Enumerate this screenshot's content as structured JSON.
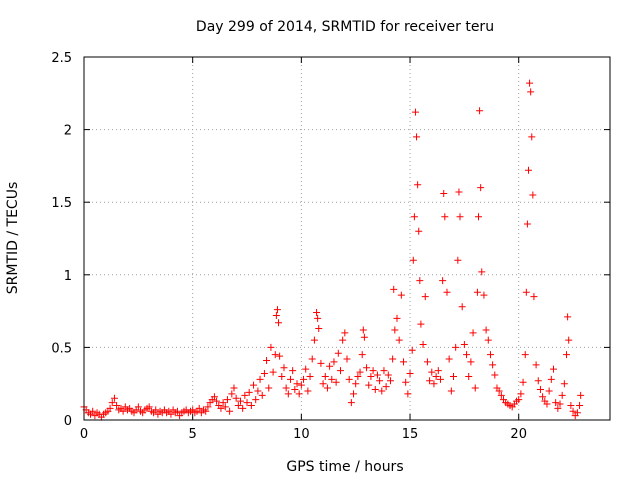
{
  "chart_data": {
    "type": "scatter",
    "title": "Day 299 of 2014, SRMTID for receiver teru",
    "xlabel": "GPS time / hours",
    "ylabel": "SRMTID / TECUs",
    "xlim": [
      0,
      24.2
    ],
    "ylim": [
      0,
      2.5
    ],
    "xticks": [
      0,
      5,
      10,
      15,
      20
    ],
    "xtick_labels": [
      "0",
      "5",
      "10",
      "15",
      "20"
    ],
    "yticks": [
      0,
      0.5,
      1,
      1.5,
      2,
      2.5
    ],
    "ytick_labels": [
      "0",
      "0.5",
      "1",
      "1.5",
      "2",
      "2.5"
    ],
    "grid": true,
    "marker": "+",
    "color": "#ff0000",
    "series": [
      {
        "name": "SRMTID",
        "points": [
          [
            0.0,
            0.09
          ],
          [
            0.1,
            0.07
          ],
          [
            0.2,
            0.05
          ],
          [
            0.3,
            0.04
          ],
          [
            0.4,
            0.06
          ],
          [
            0.5,
            0.03
          ],
          [
            0.6,
            0.05
          ],
          [
            0.7,
            0.04
          ],
          [
            0.8,
            0.02
          ],
          [
            0.9,
            0.04
          ],
          [
            1.0,
            0.05
          ],
          [
            1.1,
            0.06
          ],
          [
            1.2,
            0.08
          ],
          [
            1.3,
            0.12
          ],
          [
            1.4,
            0.15
          ],
          [
            1.5,
            0.1
          ],
          [
            1.6,
            0.07
          ],
          [
            1.7,
            0.08
          ],
          [
            1.8,
            0.06
          ],
          [
            1.9,
            0.09
          ],
          [
            2.0,
            0.07
          ],
          [
            2.1,
            0.08
          ],
          [
            2.2,
            0.06
          ],
          [
            2.3,
            0.05
          ],
          [
            2.4,
            0.07
          ],
          [
            2.5,
            0.09
          ],
          [
            2.6,
            0.06
          ],
          [
            2.7,
            0.05
          ],
          [
            2.8,
            0.07
          ],
          [
            2.9,
            0.08
          ],
          [
            3.0,
            0.09
          ],
          [
            3.1,
            0.06
          ],
          [
            3.2,
            0.05
          ],
          [
            3.3,
            0.07
          ],
          [
            3.4,
            0.04
          ],
          [
            3.5,
            0.06
          ],
          [
            3.6,
            0.05
          ],
          [
            3.7,
            0.07
          ],
          [
            3.8,
            0.05
          ],
          [
            3.9,
            0.06
          ],
          [
            4.0,
            0.04
          ],
          [
            4.1,
            0.07
          ],
          [
            4.2,
            0.05
          ],
          [
            4.3,
            0.06
          ],
          [
            4.4,
            0.03
          ],
          [
            4.5,
            0.05
          ],
          [
            4.6,
            0.06
          ],
          [
            4.7,
            0.07
          ],
          [
            4.8,
            0.05
          ],
          [
            4.9,
            0.06
          ],
          [
            5.0,
            0.07
          ],
          [
            5.1,
            0.05
          ],
          [
            5.2,
            0.06
          ],
          [
            5.3,
            0.08
          ],
          [
            5.4,
            0.05
          ],
          [
            5.5,
            0.07
          ],
          [
            5.6,
            0.06
          ],
          [
            5.7,
            0.09
          ],
          [
            5.8,
            0.12
          ],
          [
            5.9,
            0.14
          ],
          [
            6.0,
            0.16
          ],
          [
            6.1,
            0.13
          ],
          [
            6.2,
            0.1
          ],
          [
            6.3,
            0.08
          ],
          [
            6.4,
            0.12
          ],
          [
            6.5,
            0.09
          ],
          [
            6.6,
            0.14
          ],
          [
            6.7,
            0.06
          ],
          [
            6.8,
            0.18
          ],
          [
            6.9,
            0.22
          ],
          [
            7.0,
            0.15
          ],
          [
            7.1,
            0.1
          ],
          [
            7.2,
            0.13
          ],
          [
            7.3,
            0.08
          ],
          [
            7.4,
            0.17
          ],
          [
            7.5,
            0.12
          ],
          [
            7.6,
            0.19
          ],
          [
            7.7,
            0.1
          ],
          [
            7.8,
            0.24
          ],
          [
            7.9,
            0.14
          ],
          [
            8.0,
            0.2
          ],
          [
            8.1,
            0.28
          ],
          [
            8.2,
            0.17
          ],
          [
            8.3,
            0.32
          ],
          [
            8.4,
            0.41
          ],
          [
            8.5,
            0.22
          ],
          [
            8.6,
            0.5
          ],
          [
            8.7,
            0.33
          ],
          [
            8.8,
            0.45
          ],
          [
            8.85,
            0.72
          ],
          [
            8.9,
            0.76
          ],
          [
            8.95,
            0.67
          ],
          [
            9.0,
            0.44
          ],
          [
            9.1,
            0.3
          ],
          [
            9.2,
            0.36
          ],
          [
            9.3,
            0.22
          ],
          [
            9.4,
            0.18
          ],
          [
            9.5,
            0.28
          ],
          [
            9.6,
            0.34
          ],
          [
            9.7,
            0.21
          ],
          [
            9.8,
            0.25
          ],
          [
            9.9,
            0.18
          ],
          [
            10.0,
            0.24
          ],
          [
            10.1,
            0.28
          ],
          [
            10.2,
            0.35
          ],
          [
            10.3,
            0.2
          ],
          [
            10.4,
            0.3
          ],
          [
            10.5,
            0.42
          ],
          [
            10.6,
            0.55
          ],
          [
            10.7,
            0.74
          ],
          [
            10.75,
            0.7
          ],
          [
            10.8,
            0.63
          ],
          [
            10.9,
            0.39
          ],
          [
            11.0,
            0.25
          ],
          [
            11.1,
            0.3
          ],
          [
            11.2,
            0.22
          ],
          [
            11.3,
            0.37
          ],
          [
            11.4,
            0.28
          ],
          [
            11.5,
            0.4
          ],
          [
            11.6,
            0.26
          ],
          [
            11.7,
            0.46
          ],
          [
            11.8,
            0.34
          ],
          [
            11.9,
            0.55
          ],
          [
            12.0,
            0.6
          ],
          [
            12.1,
            0.42
          ],
          [
            12.2,
            0.28
          ],
          [
            12.3,
            0.12
          ],
          [
            12.4,
            0.18
          ],
          [
            12.5,
            0.25
          ],
          [
            12.6,
            0.3
          ],
          [
            12.7,
            0.33
          ],
          [
            12.8,
            0.45
          ],
          [
            12.85,
            0.62
          ],
          [
            12.9,
            0.57
          ],
          [
            13.0,
            0.36
          ],
          [
            13.1,
            0.24
          ],
          [
            13.2,
            0.3
          ],
          [
            13.3,
            0.34
          ],
          [
            13.4,
            0.21
          ],
          [
            13.5,
            0.31
          ],
          [
            13.6,
            0.27
          ],
          [
            13.7,
            0.2
          ],
          [
            13.8,
            0.34
          ],
          [
            13.9,
            0.23
          ],
          [
            14.0,
            0.31
          ],
          [
            14.1,
            0.27
          ],
          [
            14.2,
            0.42
          ],
          [
            14.25,
            0.9
          ],
          [
            14.3,
            0.62
          ],
          [
            14.4,
            0.7
          ],
          [
            14.5,
            0.55
          ],
          [
            14.6,
            0.86
          ],
          [
            14.7,
            0.4
          ],
          [
            14.8,
            0.26
          ],
          [
            14.9,
            0.18
          ],
          [
            15.0,
            0.32
          ],
          [
            15.1,
            0.48
          ],
          [
            15.15,
            1.1
          ],
          [
            15.2,
            1.4
          ],
          [
            15.25,
            2.12
          ],
          [
            15.3,
            1.95
          ],
          [
            15.35,
            1.62
          ],
          [
            15.4,
            1.3
          ],
          [
            15.45,
            0.96
          ],
          [
            15.5,
            0.66
          ],
          [
            15.6,
            0.52
          ],
          [
            15.7,
            0.85
          ],
          [
            15.8,
            0.4
          ],
          [
            15.9,
            0.27
          ],
          [
            16.0,
            0.33
          ],
          [
            16.1,
            0.25
          ],
          [
            16.2,
            0.3
          ],
          [
            16.3,
            0.34
          ],
          [
            16.4,
            0.28
          ],
          [
            16.5,
            0.96
          ],
          [
            16.55,
            1.56
          ],
          [
            16.6,
            1.4
          ],
          [
            16.7,
            0.88
          ],
          [
            16.8,
            0.42
          ],
          [
            16.9,
            0.2
          ],
          [
            17.0,
            0.3
          ],
          [
            17.1,
            0.5
          ],
          [
            17.2,
            1.1
          ],
          [
            17.25,
            1.57
          ],
          [
            17.3,
            1.4
          ],
          [
            17.4,
            0.78
          ],
          [
            17.5,
            0.52
          ],
          [
            17.6,
            0.45
          ],
          [
            17.7,
            0.3
          ],
          [
            17.8,
            0.4
          ],
          [
            17.9,
            0.6
          ],
          [
            18.0,
            0.22
          ],
          [
            18.1,
            0.88
          ],
          [
            18.15,
            1.4
          ],
          [
            18.2,
            2.13
          ],
          [
            18.25,
            1.6
          ],
          [
            18.3,
            1.02
          ],
          [
            18.4,
            0.86
          ],
          [
            18.5,
            0.62
          ],
          [
            18.6,
            0.55
          ],
          [
            18.7,
            0.45
          ],
          [
            18.8,
            0.38
          ],
          [
            18.9,
            0.31
          ],
          [
            19.0,
            0.22
          ],
          [
            19.1,
            0.2
          ],
          [
            19.2,
            0.17
          ],
          [
            19.3,
            0.14
          ],
          [
            19.4,
            0.12
          ],
          [
            19.5,
            0.11
          ],
          [
            19.6,
            0.1
          ],
          [
            19.7,
            0.09
          ],
          [
            19.8,
            0.11
          ],
          [
            19.9,
            0.13
          ],
          [
            20.0,
            0.14
          ],
          [
            20.1,
            0.18
          ],
          [
            20.2,
            0.26
          ],
          [
            20.3,
            0.45
          ],
          [
            20.35,
            0.88
          ],
          [
            20.4,
            1.35
          ],
          [
            20.45,
            1.72
          ],
          [
            20.5,
            2.32
          ],
          [
            20.55,
            2.26
          ],
          [
            20.6,
            1.95
          ],
          [
            20.65,
            1.55
          ],
          [
            20.7,
            0.85
          ],
          [
            20.8,
            0.38
          ],
          [
            20.9,
            0.27
          ],
          [
            21.0,
            0.21
          ],
          [
            21.1,
            0.16
          ],
          [
            21.2,
            0.13
          ],
          [
            21.3,
            0.11
          ],
          [
            21.4,
            0.2
          ],
          [
            21.5,
            0.28
          ],
          [
            21.6,
            0.35
          ],
          [
            21.7,
            0.12
          ],
          [
            21.8,
            0.08
          ],
          [
            21.9,
            0.11
          ],
          [
            22.0,
            0.17
          ],
          [
            22.1,
            0.25
          ],
          [
            22.2,
            0.45
          ],
          [
            22.25,
            0.71
          ],
          [
            22.3,
            0.55
          ],
          [
            22.4,
            0.1
          ],
          [
            22.5,
            0.06
          ],
          [
            22.6,
            0.03
          ],
          [
            22.7,
            0.05
          ],
          [
            22.8,
            0.1
          ],
          [
            22.85,
            0.17
          ]
        ]
      }
    ]
  }
}
